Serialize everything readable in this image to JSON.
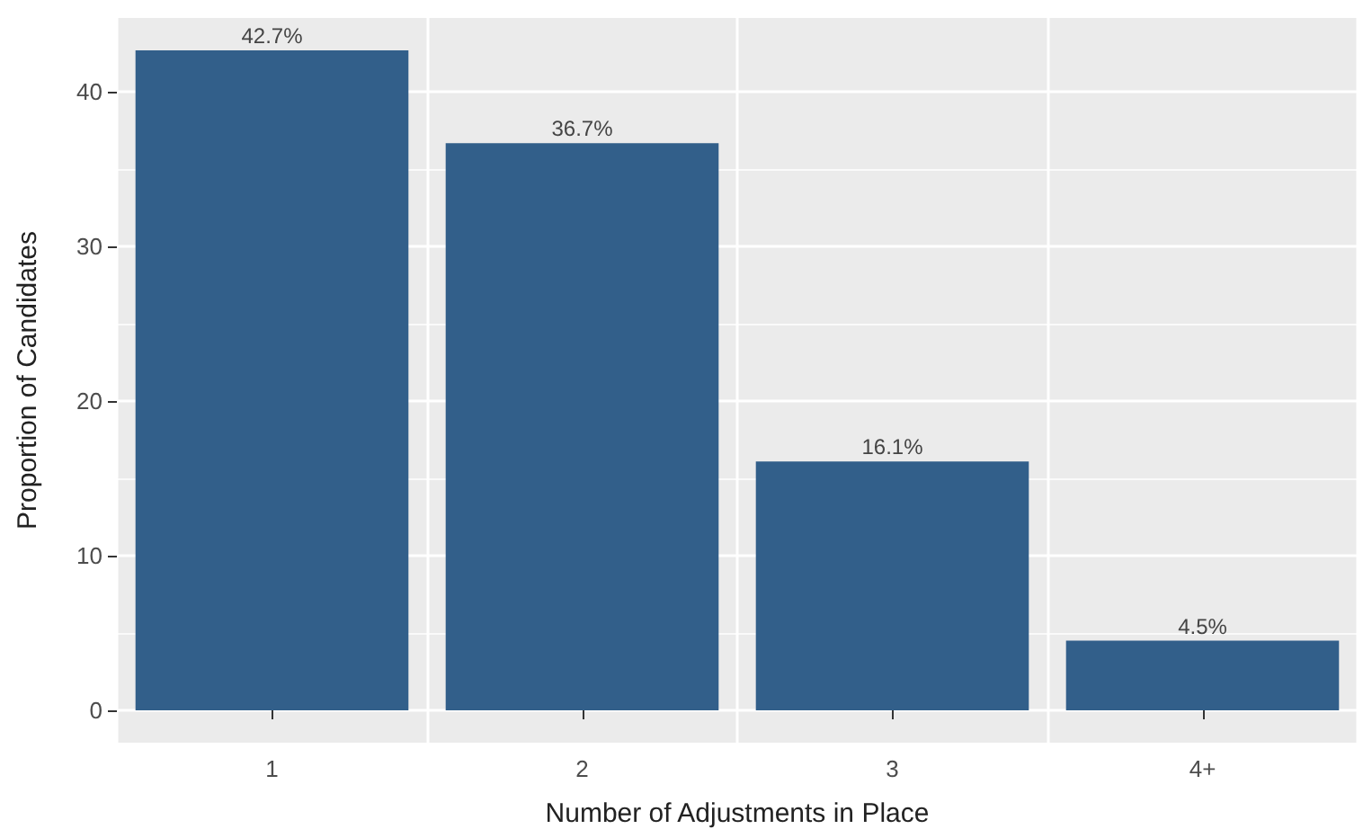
{
  "chart_data": {
    "type": "bar",
    "xlabel": "Number of Adjustments in Place",
    "ylabel": "Proportion of Candidates",
    "categories": [
      "1",
      "2",
      "3",
      "4+"
    ],
    "values": [
      42.7,
      36.7,
      16.1,
      4.5
    ],
    "value_labels": [
      "42.7%",
      "36.7%",
      "16.1%",
      "4.5%"
    ],
    "color": "#325f8a",
    "ylim": [
      -2.1,
      44.8
    ],
    "yticks": [
      0,
      10,
      20,
      30,
      40
    ],
    "grid": true
  }
}
